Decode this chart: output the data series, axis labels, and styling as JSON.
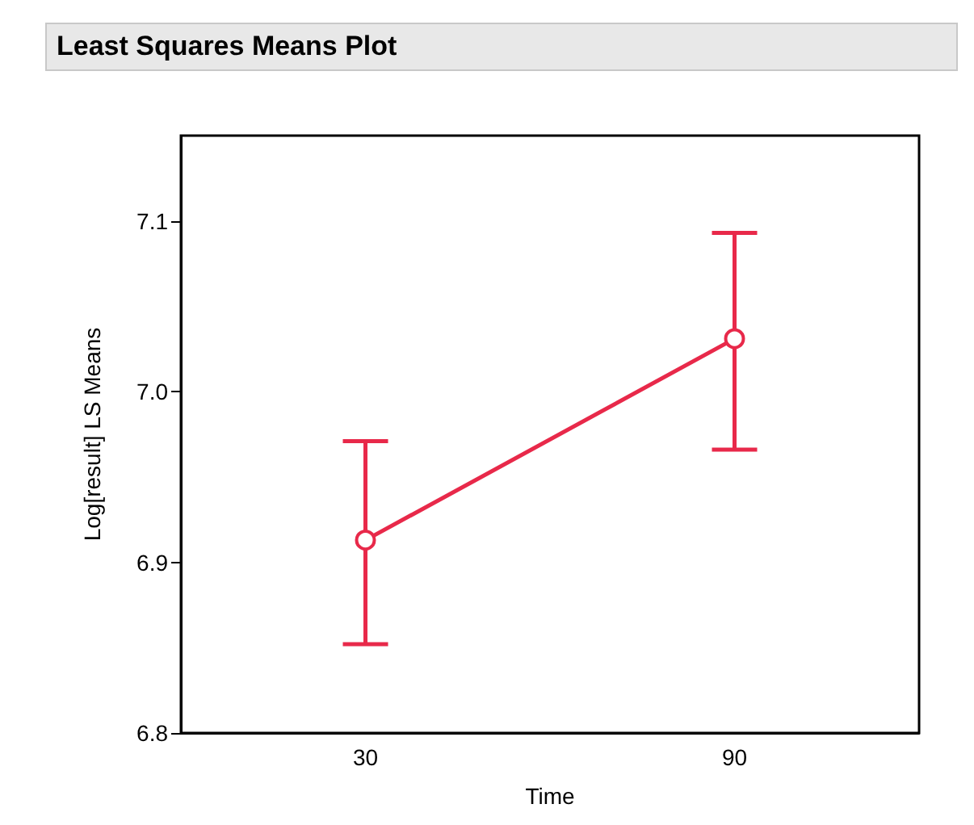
{
  "chart_data": {
    "type": "line",
    "title": "Least Squares Means Plot",
    "xlabel": "Time",
    "ylabel": "Log[result] LS Means",
    "categories": [
      "30",
      "90"
    ],
    "series": [
      {
        "color": "#e8294a",
        "values": [
          6.913,
          7.031
        ],
        "errors": [
          [
            6.852,
            6.971
          ],
          [
            6.966,
            7.093
          ]
        ]
      }
    ],
    "ylim": [
      6.8,
      7.15
    ],
    "yticks": [
      6.8,
      6.9,
      {
        "value": 7.0,
        "label": "7.0"
      },
      7.1
    ],
    "grid": false,
    "marker": "circle",
    "line_style": "solid"
  }
}
